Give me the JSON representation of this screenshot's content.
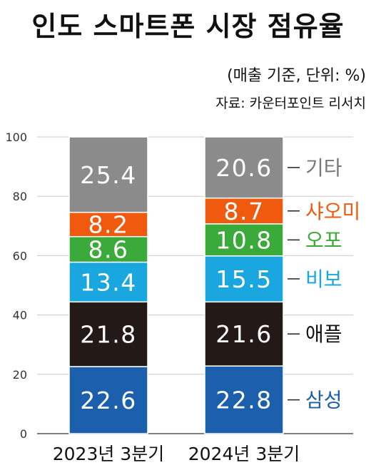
{
  "title": "인도 스마트폰 시장 점유율",
  "subtitle": "(매출 기준, 단위: %)",
  "source": "자료: 카운터포인트 리서치",
  "chart_data": {
    "type": "bar",
    "stacked": true,
    "categories": [
      "2023년 3분기",
      "2024년 3분기"
    ],
    "ylim": [
      0,
      100
    ],
    "yticks": [
      0,
      20,
      40,
      60,
      80,
      100
    ],
    "grid": true,
    "series": [
      {
        "name": "삼성",
        "values": [
          22.6,
          22.8
        ],
        "color": "#1b5fad",
        "label_color": "#1b5fad",
        "labels": [
          "22.6",
          "22.8"
        ]
      },
      {
        "name": "애플",
        "values": [
          21.8,
          21.6
        ],
        "color": "#231a17",
        "label_color": "#111111",
        "labels": [
          "21.8",
          "21.6"
        ]
      },
      {
        "name": "비보",
        "values": [
          13.4,
          15.5
        ],
        "color": "#1aa7e0",
        "label_color": "#1aa7e0",
        "labels": [
          "13.4",
          "15.5"
        ]
      },
      {
        "name": "오포",
        "values": [
          8.6,
          10.8
        ],
        "color": "#3aaa3a",
        "label_color": "#3aaa3a",
        "labels": [
          "8.6",
          "10.8"
        ]
      },
      {
        "name": "샤오미",
        "values": [
          8.2,
          8.7
        ],
        "color": "#ef5a0e",
        "label_color": "#ef5a0e",
        "labels": [
          "8.2",
          "8.7"
        ]
      },
      {
        "name": "기타",
        "values": [
          25.4,
          20.6
        ],
        "color": "#8b8b8b",
        "label_color": "#777777",
        "labels": [
          "25.4",
          "20.6"
        ]
      }
    ]
  }
}
